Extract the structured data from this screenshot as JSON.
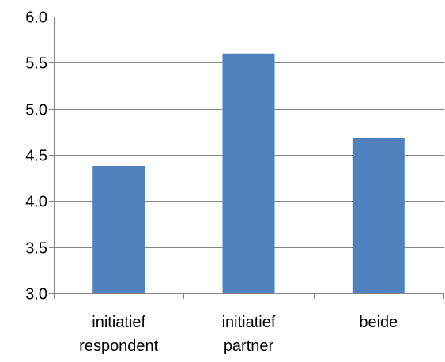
{
  "chart_data": {
    "type": "bar",
    "categories": [
      [
        "initiatief",
        "respondent"
      ],
      [
        "initiatief",
        "partner"
      ],
      [
        "beide"
      ]
    ],
    "values": [
      4.38,
      5.6,
      4.68
    ],
    "title": "",
    "xlabel": "",
    "ylabel": "",
    "ylim": [
      3.0,
      6.0
    ],
    "yticks": [
      "3.0",
      "3.5",
      "4.0",
      "4.5",
      "5.0",
      "5.5",
      "6.0"
    ],
    "grid": true,
    "legend": "none",
    "bar_color": "#4f81bd",
    "grid_color": "#868686"
  }
}
